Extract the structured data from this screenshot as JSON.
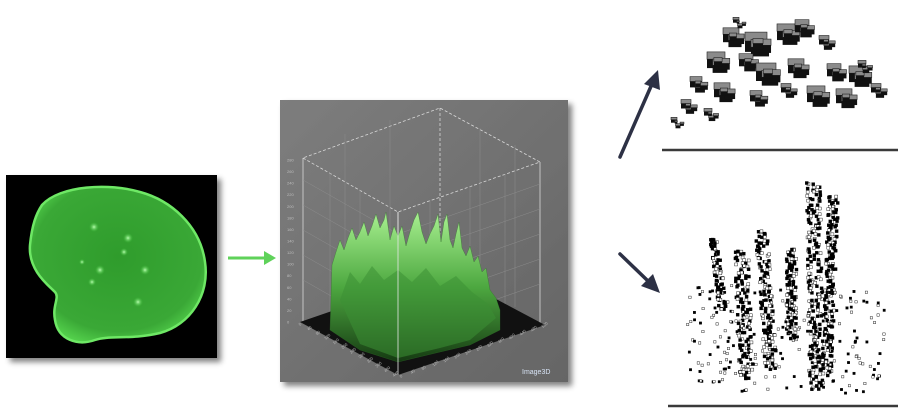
{
  "surface_plot": {
    "watermark": "Image3D",
    "z_tick_labels": [
      "280",
      "260",
      "240",
      "220",
      "200",
      "180",
      "160",
      "140",
      "120",
      "100",
      "80",
      "60",
      "40",
      "20",
      "0"
    ],
    "x_tick_labels": [
      "0",
      "40",
      "80",
      "120",
      "160",
      "200",
      "240",
      "280",
      "320",
      "360",
      "400",
      "440",
      "480",
      "520"
    ],
    "y_tick_labels": [
      "0",
      "40",
      "80",
      "120",
      "160",
      "200",
      "240",
      "280",
      "320",
      "360",
      "400",
      "440"
    ]
  },
  "colors": {
    "nucleus_green": "#3fc23a",
    "arrow_green": "#5fd25a",
    "arrow_dark": "#2d3145",
    "plot_bg": "#747474",
    "plot_floor": "#111111"
  }
}
